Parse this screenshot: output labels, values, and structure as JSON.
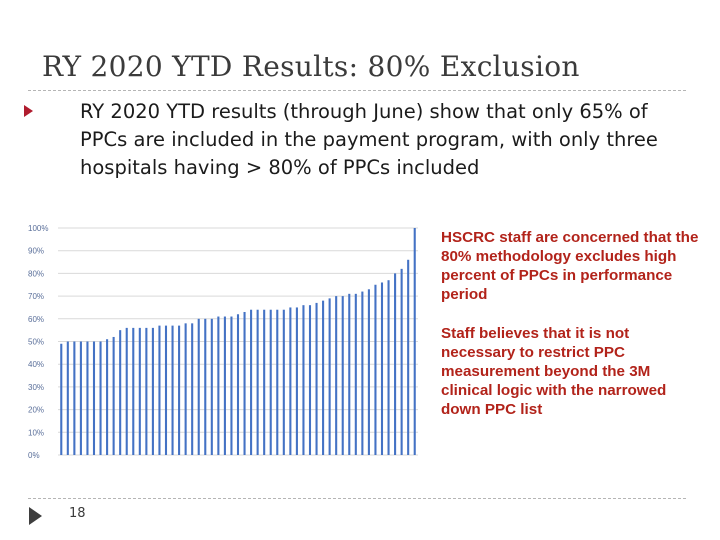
{
  "slide": {
    "title": "RY 2020 YTD Results:  80% Exclusion",
    "bullet": "RY 2020 YTD results (through June) show that only 65% of PPCs are included in the payment program, with only three hospitals having > 80% of PPCs included",
    "notes": [
      "HSCRC staff are concerned that the 80% methodology excludes high percent of PPCs in performance period",
      "Staff believes that it is not necessary to restrict PPC measurement beyond the 3M clinical logic with the narrowed down PPC list"
    ],
    "page_number": "18"
  },
  "colors": {
    "title": "#3b3b3b",
    "accent": "#b01c2e",
    "note_text": "#b2231a",
    "bar": "#4472c4",
    "grid": "#d9d9d9",
    "tick_text": "#5a6f9a"
  },
  "chart_data": {
    "type": "bar",
    "title": "",
    "xlabel": "",
    "ylabel": "",
    "ylim": [
      0,
      100
    ],
    "ytick_labels": [
      "0%",
      "10%",
      "20%",
      "30%",
      "40%",
      "50%",
      "60%",
      "70%",
      "80%",
      "90%",
      "100%"
    ],
    "grid": true,
    "values": [
      49,
      50,
      50,
      50,
      50,
      50,
      50,
      51,
      52,
      55,
      56,
      56,
      56,
      56,
      56,
      57,
      57,
      57,
      57,
      58,
      58,
      60,
      60,
      60,
      61,
      61,
      61,
      62,
      63,
      64,
      64,
      64,
      64,
      64,
      64,
      65,
      65,
      66,
      66,
      67,
      68,
      69,
      70,
      70,
      71,
      71,
      72,
      73,
      75,
      76,
      77,
      80,
      82,
      86,
      100
    ]
  }
}
